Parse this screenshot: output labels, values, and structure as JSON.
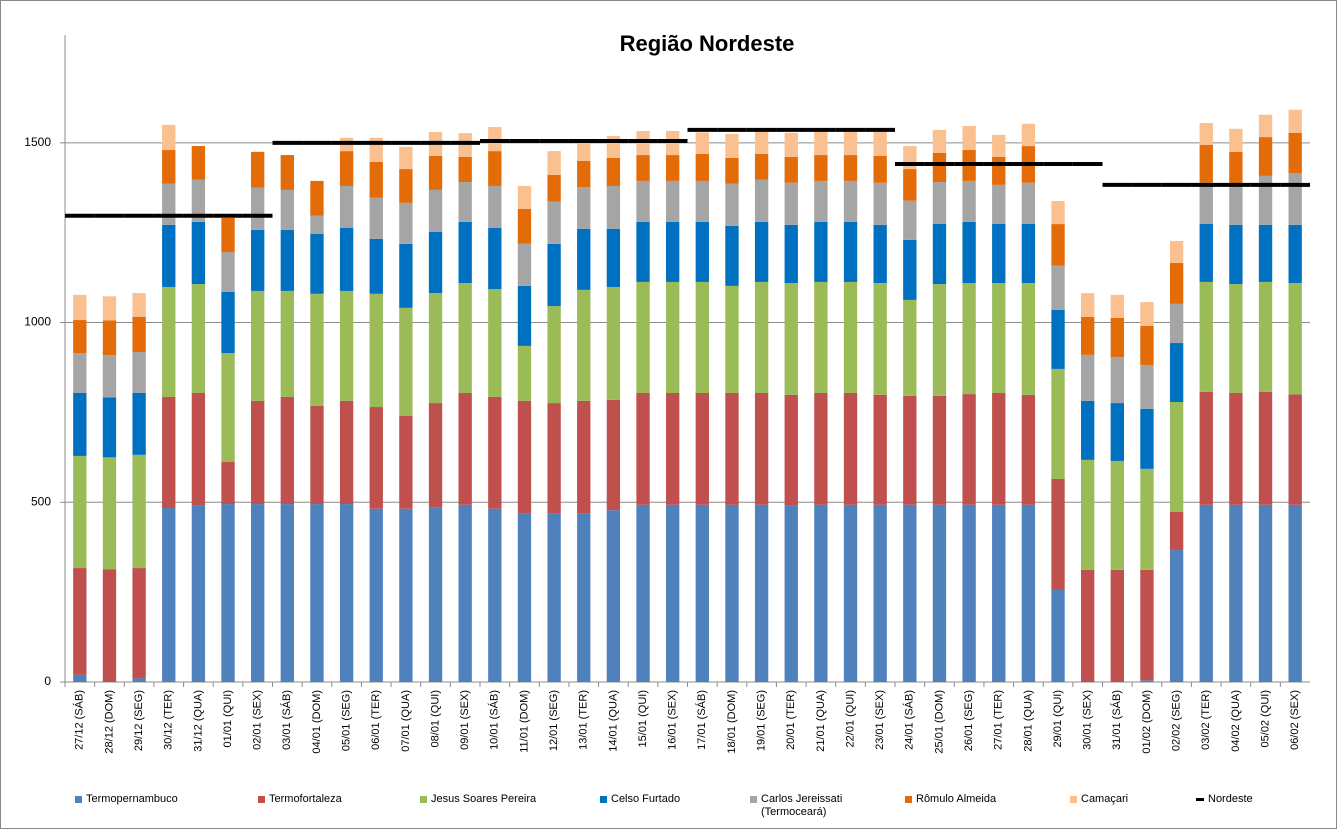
{
  "chart_data": {
    "type": "bar",
    "stacked": true,
    "title": "Região Nordeste",
    "categories": [
      "27/12 (SÁB)",
      "28/12 (DOM)",
      "29/12 (SEG)",
      "30/12 (TER)",
      "31/12 (QUA)",
      "01/01 (QUI)",
      "02/01 (SEX)",
      "03/01 (SÁB)",
      "04/01 (DOM)",
      "05/01 (SEG)",
      "06/01 (TER)",
      "07/01 (QUA)",
      "08/01 (QUI)",
      "09/01 (SEX)",
      "10/01 (SÁB)",
      "11/01 (DOM)",
      "12/01 (SEG)",
      "13/01 (TER)",
      "14/01 (QUA)",
      "15/01 (QUI)",
      "16/01 (SEX)",
      "17/01 (SÁB)",
      "18/01 (DOM)",
      "19/01 (SEG)",
      "20/01 (TER)",
      "21/01 (QUA)",
      "22/01 (QUI)",
      "23/01 (SEX)",
      "24/01 (SÁB)",
      "25/01 (DOM)",
      "26/01 (SEG)",
      "27/01 (TER)",
      "28/01 (QUA)",
      "29/01 (QUI)",
      "30/01 (SEX)",
      "31/01 (SÁB)",
      "01/02 (DOM)",
      "02/02 (SEG)",
      "03/02 (TER)",
      "04/02 (QUA)",
      "05/02 (QUI)",
      "06/02 (SEX)"
    ],
    "series": [
      {
        "name": "Termopernambuco",
        "color": "#4f81bd",
        "values": [
          20,
          0,
          10,
          484,
          490,
          495,
          495,
          495,
          495,
          495,
          482,
          482,
          486,
          493,
          482,
          468,
          468,
          468,
          478,
          493,
          493,
          493,
          493,
          493,
          490,
          493,
          493,
          493,
          493,
          493,
          493,
          493,
          493,
          256,
          0,
          0,
          5,
          367,
          493,
          493,
          493,
          493
        ]
      },
      {
        "name": "Termofortaleza",
        "color": "#c0504d",
        "values": [
          297,
          313,
          307,
          309,
          314,
          117,
          287,
          298,
          273,
          287,
          283,
          258,
          290,
          311,
          311,
          314,
          308,
          314,
          307,
          311,
          311,
          311,
          311,
          311,
          309,
          311,
          311,
          306,
          303,
          303,
          308,
          311,
          306,
          309,
          312,
          312,
          307,
          106,
          314,
          311,
          314,
          307
        ]
      },
      {
        "name": "Jesus Soares Pereira",
        "color": "#9bbb59",
        "values": [
          312,
          312,
          315,
          306,
          303,
          303,
          306,
          295,
          312,
          306,
          315,
          301,
          306,
          306,
          300,
          153,
          270,
          309,
          314,
          309,
          309,
          309,
          298,
          309,
          311,
          309,
          309,
          311,
          267,
          311,
          309,
          306,
          311,
          306,
          306,
          303,
          281,
          306,
          306,
          303,
          306,
          310
        ]
      },
      {
        "name": "Celso Furtado",
        "color": "#0070c0",
        "values": [
          175,
          167,
          172,
          173,
          173,
          170,
          170,
          170,
          167,
          175,
          153,
          178,
          170,
          170,
          170,
          167,
          173,
          170,
          162,
          167,
          167,
          167,
          167,
          167,
          162,
          167,
          167,
          162,
          167,
          168,
          170,
          165,
          165,
          164,
          164,
          161,
          167,
          164,
          162,
          165,
          159,
          162
        ]
      },
      {
        "name": "Carlos Jereissati (Termoceará)",
        "color": "#a5a5a5",
        "values": [
          111,
          117,
          114,
          114,
          117,
          111,
          117,
          111,
          50,
          117,
          114,
          114,
          117,
          111,
          117,
          117,
          117,
          116,
          119,
          114,
          114,
          114,
          117,
          117,
          117,
          114,
          114,
          117,
          109,
          116,
          114,
          108,
          114,
          123,
          128,
          128,
          122,
          109,
          114,
          108,
          136,
          144
        ]
      },
      {
        "name": "Rômulo Almeida",
        "color": "#e36c09",
        "values": [
          92,
          97,
          98,
          94,
          94,
          95,
          100,
          97,
          97,
          97,
          100,
          94,
          95,
          70,
          97,
          97,
          75,
          73,
          78,
          72,
          72,
          75,
          72,
          72,
          72,
          72,
          72,
          75,
          88,
          81,
          86,
          78,
          102,
          116,
          106,
          109,
          109,
          114,
          105,
          95,
          108,
          112
        ]
      },
      {
        "name": "Camaçari",
        "color": "#fac090",
        "values": [
          70,
          67,
          66,
          70,
          0,
          0,
          0,
          0,
          0,
          37,
          67,
          62,
          66,
          66,
          67,
          64,
          66,
          61,
          61,
          67,
          67,
          60,
          67,
          67,
          67,
          67,
          67,
          66,
          64,
          64,
          67,
          61,
          62,
          64,
          66,
          64,
          66,
          61,
          61,
          64,
          62,
          64
        ]
      },
      {
        "name": "Nordeste",
        "color": "#000000",
        "type": "line",
        "values": [
          1297,
          1297,
          1297,
          1297,
          1297,
          1297,
          1297,
          1500,
          1500,
          1500,
          1500,
          1500,
          1500,
          1500,
          1505,
          1505,
          1505,
          1505,
          1505,
          1505,
          1505,
          1536,
          1536,
          1536,
          1536,
          1536,
          1536,
          1536,
          1441,
          1441,
          1441,
          1441,
          1441,
          1441,
          1441,
          1383,
          1383,
          1383,
          1383,
          1383,
          1383,
          1383
        ]
      }
    ],
    "ylim": [
      0,
      1800
    ],
    "yticks": [
      0,
      500,
      1000,
      1500
    ],
    "grid": true,
    "legend": "bottom"
  }
}
